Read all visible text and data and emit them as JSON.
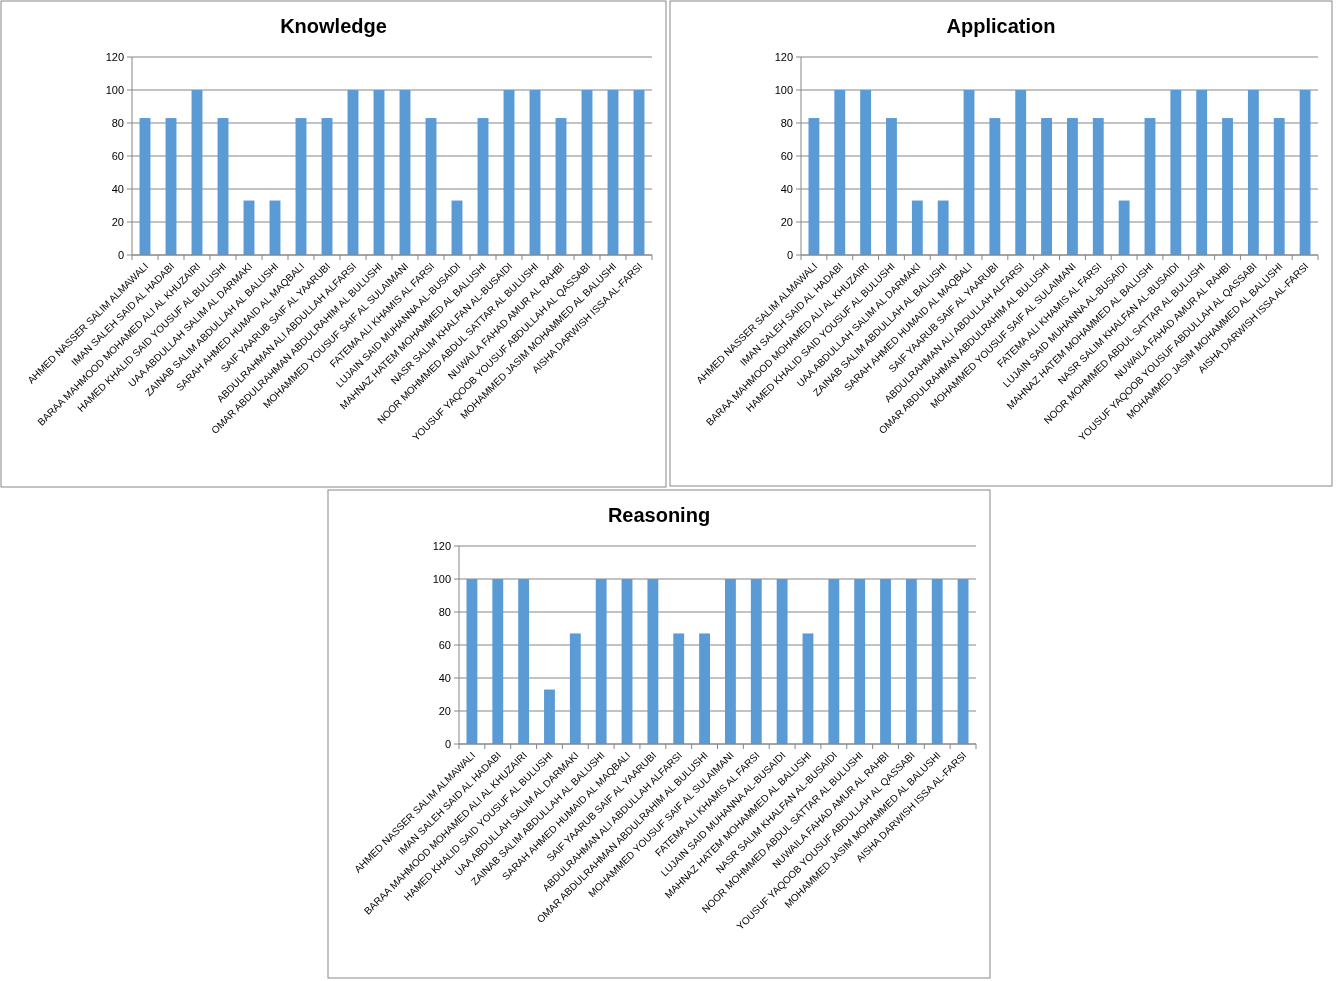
{
  "chart_data": [
    {
      "type": "bar",
      "title": "Knowledge",
      "categories": [
        "AHMED NASSER SALIM ALMAWALI",
        "IMAN SALEH SAID AL HADABI",
        "BARAA MAHMOOD MOHAMED ALI AL KHUZAIRI",
        "HAMED KHALID SAID YOUSUF AL BULUSHI",
        "UAA ABDULLAH SALIM AL DARMAKI",
        "ZAINAB SALIM ABDULLAH AL BALUSHI",
        "SARAH AHMED HUMAID AL MAQBALI",
        "SAIF YAARUB SAIF AL YAARUBI",
        "ABDULRAHMAN ALI ABDULLAH ALFARSI",
        "OMAR ABDULRAHMAN ABDULRAHIM AL BULUSHI",
        "MOHAMMED YOUSUF SAIF AL SULAIMANI",
        "FATEMA ALI KHAMIS AL FARSI",
        "LUJAIN SAID MUHANNA AL-BUSAIDI",
        "MAHNAZ HATEM MOHAMMED AL BALUSHI",
        "NASR SALIM KHALFAN AL-BUSAIDI",
        "NOOR MOHMMED ABDUL SATTAR AL BULUSHI",
        "NUWAILA FAHAD AMUR AL RAHBI",
        "YOUSUF YAQOOB YOUSUF ABDULLAH AL QASSABI",
        "MOHAMMED JASIM MOHAMMED AL BALUSHI",
        "AISHA DARWISH ISSA AL-FARSI"
      ],
      "values": [
        83,
        83,
        100,
        83,
        33,
        33,
        83,
        83,
        100,
        100,
        100,
        83,
        33,
        83,
        100,
        100,
        83,
        100,
        100,
        100
      ],
      "color": "#5b9bd5",
      "ylim": [
        0,
        120
      ],
      "yticks": [
        0,
        20,
        40,
        60,
        80,
        100,
        120
      ],
      "grid": "y"
    },
    {
      "type": "bar",
      "title": "Application",
      "categories": [
        "AHMED NASSER SALIM ALMAWALI",
        "IMAN SALEH SAID AL HADABI",
        "BARAA MAHMOOD MOHAMED ALI AL KHUZAIRI",
        "HAMED KHALID SAID YOUSUF AL BULUSHI",
        "UAA ABDULLAH SALIM AL DARMAKI",
        "ZAINAB SALIM ABDULLAH AL BALUSHI",
        "SARAH AHMED HUMAID AL MAQBALI",
        "SAIF YAARUB SAIF AL YAARUBI",
        "ABDULRAHMAN ALI ABDULLAH ALFARSI",
        "OMAR ABDULRAHMAN ABDULRAHIM AL BULUSHI",
        "MOHAMMED YOUSUF SAIF AL SULAIMANI",
        "FATEMA ALI KHAMIS AL FARSI",
        "LUJAIN SAID MUHANNA AL-BUSAIDI",
        "MAHNAZ HATEM MOHAMMED AL BALUSHI",
        "NASR SALIM KHALFAN AL-BUSAIDI",
        "NOOR MOHMMED ABDUL SATTAR AL BULUSHI",
        "NUWAILA FAHAD AMUR AL RAHBI",
        "YOUSUF YAQOOB YOUSUF ABDULLAH AL QASSABI",
        "MOHAMMED JASIM MOHAMMED AL BALUSHI",
        "AISHA DARWISH ISSA AL-FARSI"
      ],
      "values": [
        83,
        100,
        100,
        83,
        33,
        33,
        100,
        83,
        100,
        83,
        83,
        83,
        33,
        83,
        100,
        100,
        83,
        100,
        83,
        100
      ],
      "color": "#5b9bd5",
      "ylim": [
        0,
        120
      ],
      "yticks": [
        0,
        20,
        40,
        60,
        80,
        100,
        120
      ],
      "grid": "y"
    },
    {
      "type": "bar",
      "title": "Reasoning",
      "categories": [
        "AHMED NASSER SALIM ALMAWALI",
        "IMAN SALEH SAID AL HADABI",
        "BARAA MAHMOOD MOHAMED ALI AL KHUZAIRI",
        "HAMED KHALID SAID YOUSUF AL BULUSHI",
        "UAA ABDULLAH SALIM AL DARMAKI",
        "ZAINAB SALIM ABDULLAH AL BALUSHI",
        "SARAH AHMED HUMAID AL MAQBALI",
        "SAIF YAARUB SAIF AL YAARUBI",
        "ABDULRAHMAN ALI ABDULLAH ALFARSI",
        "OMAR ABDULRAHMAN ABDULRAHIM AL BULUSHI",
        "MOHAMMED YOUSUF SAIF AL SULAIMANI",
        "FATEMA ALI KHAMIS AL FARSI",
        "LUJAIN SAID MUHANNA AL-BUSAIDI",
        "MAHNAZ HATEM MOHAMMED AL BALUSHI",
        "NASR SALIM KHALFAN AL-BUSAIDI",
        "NOOR MOHMMED ABDUL SATTAR AL BULUSHI",
        "NUWAILA FAHAD AMUR AL RAHBI",
        "YOUSUF YAQOOB YOUSUF ABDULLAH AL QASSABI",
        "MOHAMMED JASIM MOHAMMED AL BALUSHI",
        "AISHA DARWISH ISSA AL-FARSI"
      ],
      "values": [
        100,
        100,
        100,
        33,
        67,
        100,
        100,
        100,
        67,
        67,
        100,
        100,
        100,
        67,
        100,
        100,
        100,
        100,
        100,
        100
      ],
      "color": "#5b9bd5",
      "ylim": [
        0,
        120
      ],
      "yticks": [
        0,
        20,
        40,
        60,
        80,
        100,
        120
      ],
      "grid": "y"
    }
  ]
}
